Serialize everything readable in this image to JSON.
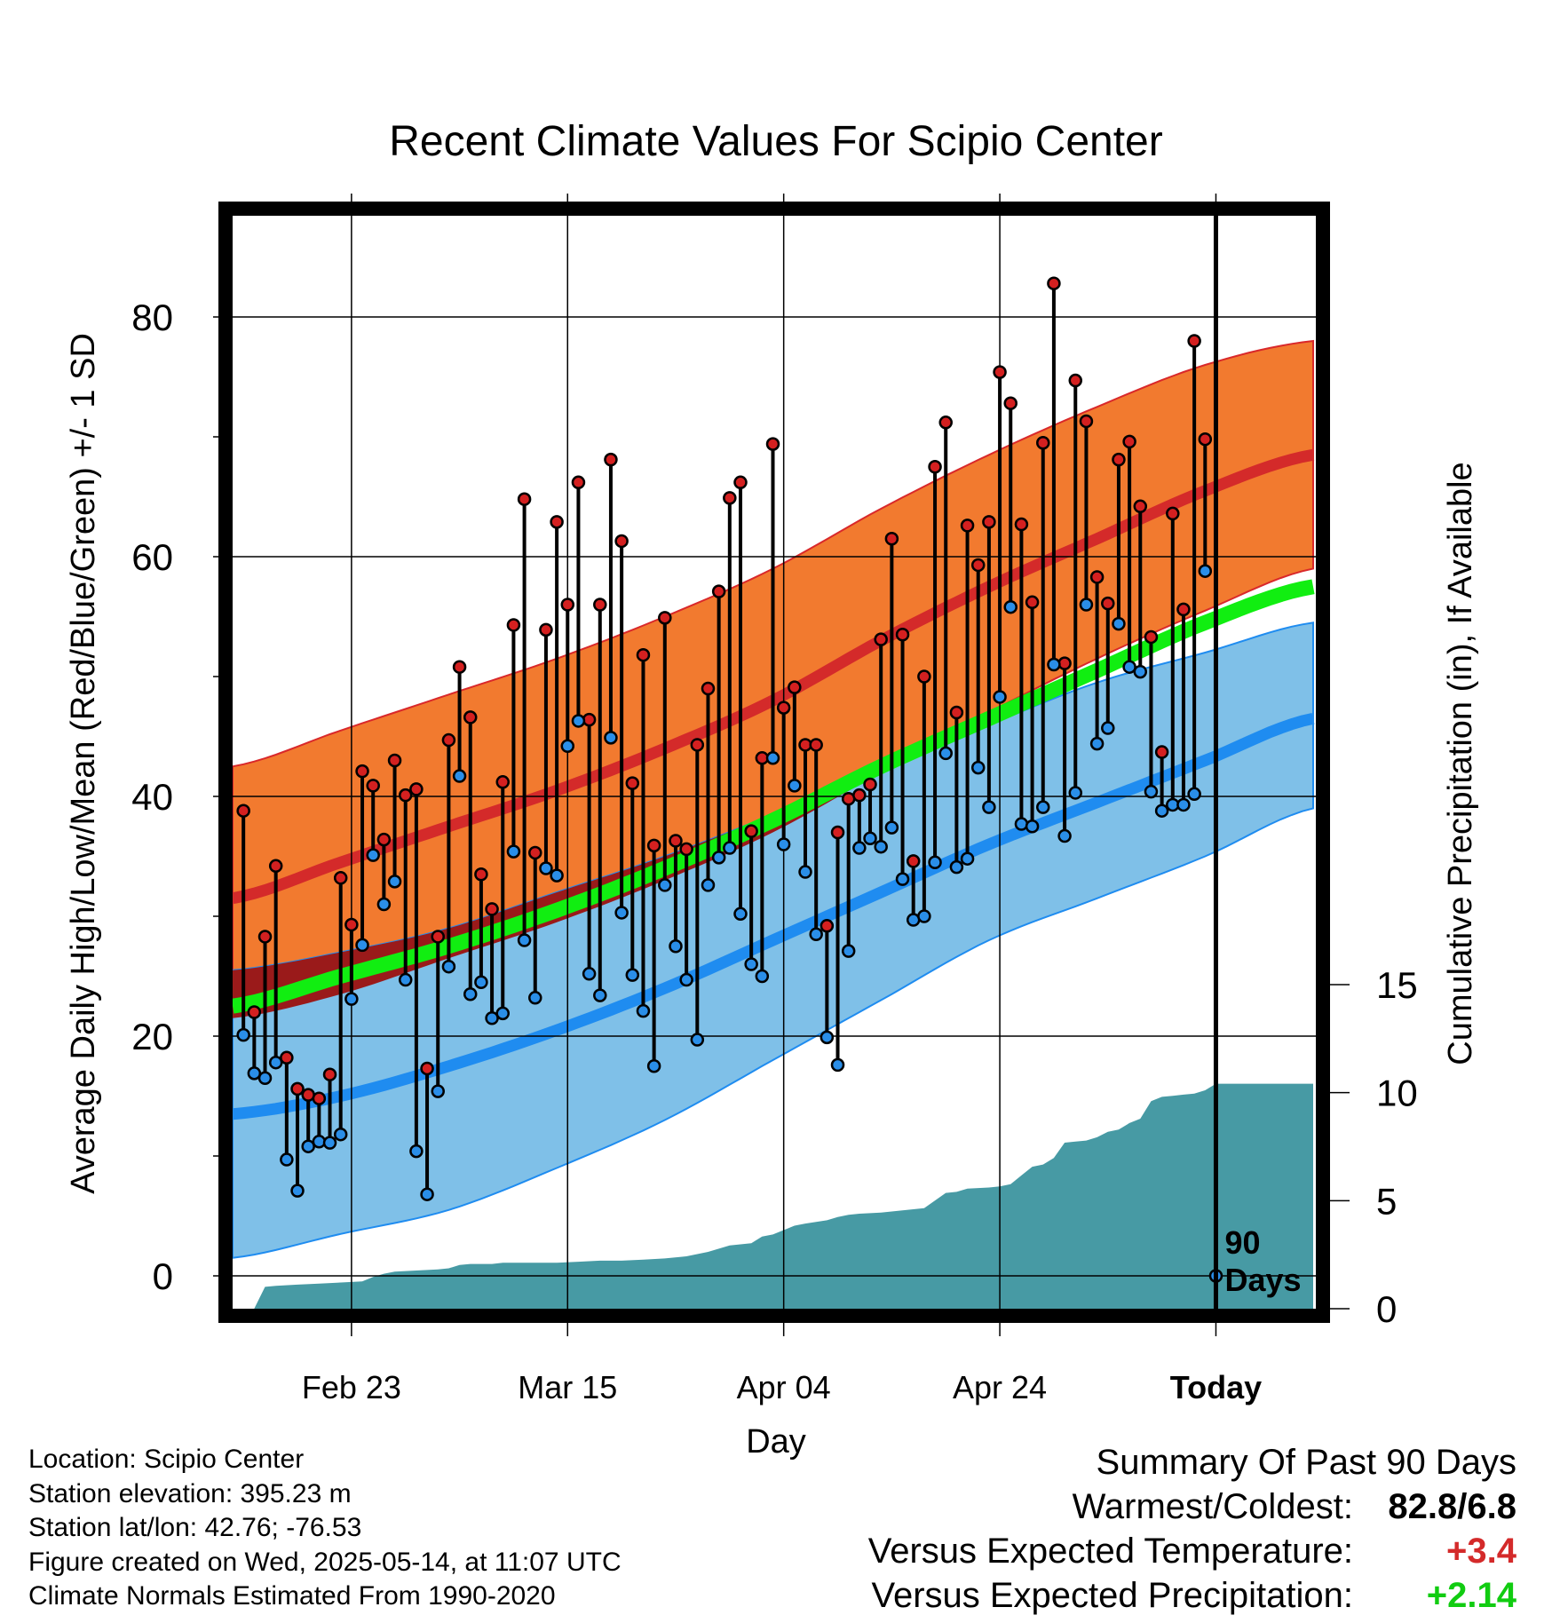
{
  "colors": {
    "warm_band": "#f27a2f",
    "warm_band_edge": "#d9282a",
    "normal_high": "#d42a2a",
    "cold_band": "#7fc0e8",
    "cold_band_edge": "#1f8cf0",
    "normal_low": "#1f8cf0",
    "normal_mean": "#11ee11",
    "overlap_band": "#9a1a1a",
    "precip_fill": "#479aa4",
    "high_marker": "#d42020",
    "low_marker": "#2a8ee8",
    "plus_temperature": "#d42a2a",
    "plus_precipitation": "#11cc11"
  },
  "chart_data": {
    "type": "line",
    "title": "Recent Climate Values For Scipio Center",
    "xlabel": "Day",
    "ylabel": "Average Daily High/Low/Mean (Red/Blue/Green) +/- 1 SD",
    "y2label": "Cumulative Precipitation (in), If Available",
    "x_tick_labels": [
      "Feb 23",
      "Mar 15",
      "Apr 04",
      "Apr 24",
      "Today"
    ],
    "x_tick_days": [
      11,
      31,
      51,
      71,
      91
    ],
    "x_range_days": [
      0,
      100
    ],
    "y_ticks": [
      0,
      20,
      40,
      60,
      80
    ],
    "y_range": [
      -2.5,
      88
    ],
    "y2_ticks": [
      0,
      5,
      10,
      15
    ],
    "y2_range": [
      0,
      15
    ],
    "today_marker_label": "90 Days",
    "today_day": 91,
    "normals": {
      "day_knots": [
        0,
        10,
        20,
        30,
        40,
        50,
        60,
        70,
        80,
        90,
        100
      ],
      "high_mean": [
        31.5,
        34.5,
        37.5,
        40.5,
        44,
        48,
        53,
        57.5,
        61.5,
        65.5,
        68.5
      ],
      "high_upper": [
        42.5,
        45.5,
        48.5,
        51.5,
        55,
        59,
        64,
        68.5,
        72.5,
        76,
        78
      ],
      "high_lower": [
        21.5,
        23.5,
        26.5,
        29.5,
        33,
        37,
        42,
        47,
        51.5,
        55.5,
        59
      ],
      "low_mean": [
        13.5,
        15,
        17.5,
        20.5,
        24,
        28,
        32,
        36,
        39.5,
        43,
        46.5
      ],
      "low_upper": [
        25.5,
        27,
        29,
        32,
        35,
        38.5,
        42.5,
        46,
        49.5,
        52,
        54.5
      ],
      "low_lower": [
        1.5,
        3.5,
        5.5,
        9,
        13,
        18,
        23,
        28,
        31.5,
        35,
        39
      ],
      "daily_mean": [
        22.5,
        25,
        27.5,
        30.5,
        34,
        38,
        42.5,
        46.5,
        50.5,
        54.5,
        57.5
      ]
    },
    "series": [
      {
        "name": "Daily High",
        "days": [
          1,
          2,
          3,
          4,
          5,
          6,
          7,
          8,
          9,
          10,
          11,
          12,
          13,
          14,
          15,
          16,
          17,
          18,
          19,
          20,
          21,
          22,
          23,
          24,
          25,
          26,
          27,
          28,
          29,
          30,
          31,
          32,
          33,
          34,
          35,
          36,
          37,
          38,
          39,
          40,
          41,
          42,
          43,
          44,
          45,
          46,
          47,
          48,
          49,
          50,
          51,
          52,
          53,
          54,
          55,
          56,
          57,
          58,
          59,
          60,
          61,
          62,
          63,
          64,
          65,
          66,
          67,
          68,
          69,
          70,
          71,
          72,
          73,
          74,
          75,
          76,
          77,
          78,
          79,
          80,
          81,
          82,
          83,
          84,
          85,
          86,
          87,
          88,
          89,
          90
        ],
        "values": [
          38.8,
          22,
          28.3,
          34.2,
          18.2,
          15.6,
          15.1,
          14.8,
          16.8,
          33.2,
          29.3,
          42.1,
          40.9,
          36.4,
          43,
          40.1,
          40.6,
          17.3,
          28.3,
          44.7,
          50.8,
          46.6,
          33.5,
          30.6,
          41.2,
          54.3,
          64.8,
          35.3,
          53.9,
          62.9,
          56,
          66.2,
          46.4,
          56,
          68.1,
          61.3,
          41.1,
          51.8,
          35.9,
          54.9,
          36.3,
          35.6,
          44.3,
          49,
          57.1,
          64.9,
          66.2,
          37.1,
          43.2,
          69.4,
          47.4,
          49.1,
          44.3,
          44.3,
          29.2,
          37,
          39.8,
          40.1,
          41,
          53.1,
          61.5,
          53.5,
          34.6,
          50,
          67.5,
          71.2,
          47,
          62.6,
          59.3,
          62.9,
          75.4,
          72.8,
          62.7,
          56.2,
          69.5,
          82.8,
          51.1,
          74.7,
          71.3,
          58.3,
          56.1,
          68.1,
          69.6,
          64.2,
          53.3,
          43.7,
          63.6,
          55.6,
          78,
          69.8
        ]
      },
      {
        "name": "Daily Low",
        "days": [
          1,
          2,
          3,
          4,
          5,
          6,
          7,
          8,
          9,
          10,
          11,
          12,
          13,
          14,
          15,
          16,
          17,
          18,
          19,
          20,
          21,
          22,
          23,
          24,
          25,
          26,
          27,
          28,
          29,
          30,
          31,
          32,
          33,
          34,
          35,
          36,
          37,
          38,
          39,
          40,
          41,
          42,
          43,
          44,
          45,
          46,
          47,
          48,
          49,
          50,
          51,
          52,
          53,
          54,
          55,
          56,
          57,
          58,
          59,
          60,
          61,
          62,
          63,
          64,
          65,
          66,
          67,
          68,
          69,
          70,
          71,
          72,
          73,
          74,
          75,
          76,
          77,
          78,
          79,
          80,
          81,
          82,
          83,
          84,
          85,
          86,
          87,
          88,
          89,
          90,
          91
        ],
        "values": [
          20.1,
          16.9,
          16.5,
          17.8,
          9.7,
          7.1,
          10.8,
          11.2,
          11.1,
          11.8,
          23.1,
          27.6,
          35.1,
          31,
          32.9,
          24.7,
          10.4,
          6.8,
          15.4,
          25.8,
          41.7,
          23.5,
          24.5,
          21.5,
          21.9,
          35.4,
          28,
          23.2,
          34,
          33.4,
          44.2,
          46.3,
          25.2,
          23.4,
          44.9,
          30.3,
          25.1,
          22.1,
          17.5,
          32.6,
          27.5,
          24.7,
          19.7,
          32.6,
          34.9,
          35.7,
          30.2,
          26,
          25,
          43.2,
          36,
          40.9,
          33.7,
          28.5,
          19.9,
          17.6,
          27.1,
          35.7,
          36.5,
          35.8,
          37.4,
          33.1,
          29.7,
          30,
          34.5,
          43.6,
          34.1,
          34.8,
          42.4,
          39.1,
          48.3,
          55.8,
          37.7,
          37.5,
          39.1,
          51,
          36.7,
          40.3,
          56,
          44.4,
          45.7,
          54.4,
          50.8,
          50.4,
          40.4,
          38.8,
          39.3,
          39.3,
          40.2,
          58.8,
          0
        ]
      }
    ],
    "precipitation_cumulative": {
      "days": [
        0,
        1,
        2,
        3,
        4,
        6,
        8,
        10,
        12,
        13,
        14,
        15,
        17,
        19,
        20,
        21,
        22,
        23,
        24,
        25,
        27,
        30,
        32,
        34,
        36,
        38,
        40,
        42,
        44,
        46,
        48,
        49,
        50,
        52,
        53,
        55,
        56,
        57,
        58,
        60,
        62,
        64,
        66,
        67,
        68,
        70,
        71,
        72,
        73,
        74,
        75,
        76,
        77,
        78,
        79,
        80,
        81,
        82,
        83,
        84,
        85,
        86,
        87,
        88,
        89,
        90,
        91,
        100
      ],
      "values": [
        0,
        0,
        0,
        1.0,
        1.05,
        1.1,
        1.15,
        1.2,
        1.25,
        1.45,
        1.6,
        1.7,
        1.75,
        1.8,
        1.85,
        2.0,
        2.05,
        2.05,
        2.05,
        2.1,
        2.1,
        2.1,
        2.15,
        2.2,
        2.2,
        2.25,
        2.3,
        2.4,
        2.6,
        2.9,
        3.0,
        3.3,
        3.4,
        3.8,
        3.9,
        4.05,
        4.2,
        4.3,
        4.35,
        4.4,
        4.5,
        4.6,
        5.3,
        5.35,
        5.5,
        5.55,
        5.6,
        5.7,
        6.1,
        6.5,
        6.6,
        6.9,
        7.6,
        7.65,
        7.7,
        7.85,
        8.1,
        8.2,
        8.5,
        8.7,
        9.5,
        9.7,
        9.75,
        9.8,
        9.85,
        10.0,
        10.3,
        10.3
      ]
    },
    "grid": true,
    "legend": "none"
  },
  "info": {
    "location": "Location: Scipio Center",
    "elevation": "Station elevation: 395.23 m",
    "latlon": "Station lat/lon: 42.76; -76.53",
    "created": "Figure created on Wed, 2025-05-14, at 11:07 UTC",
    "normals": "Climate Normals Estimated From 1990-2020"
  },
  "summary": {
    "title": "Summary Of Past 90 Days",
    "warmest_label": "Warmest/Coldest:",
    "warmest_value": "82.8/6.8",
    "temp_label": "Versus Expected Temperature:",
    "temp_value": "+3.4",
    "precip_label": "Versus Expected Precipitation:",
    "precip_value": "+2.14"
  }
}
